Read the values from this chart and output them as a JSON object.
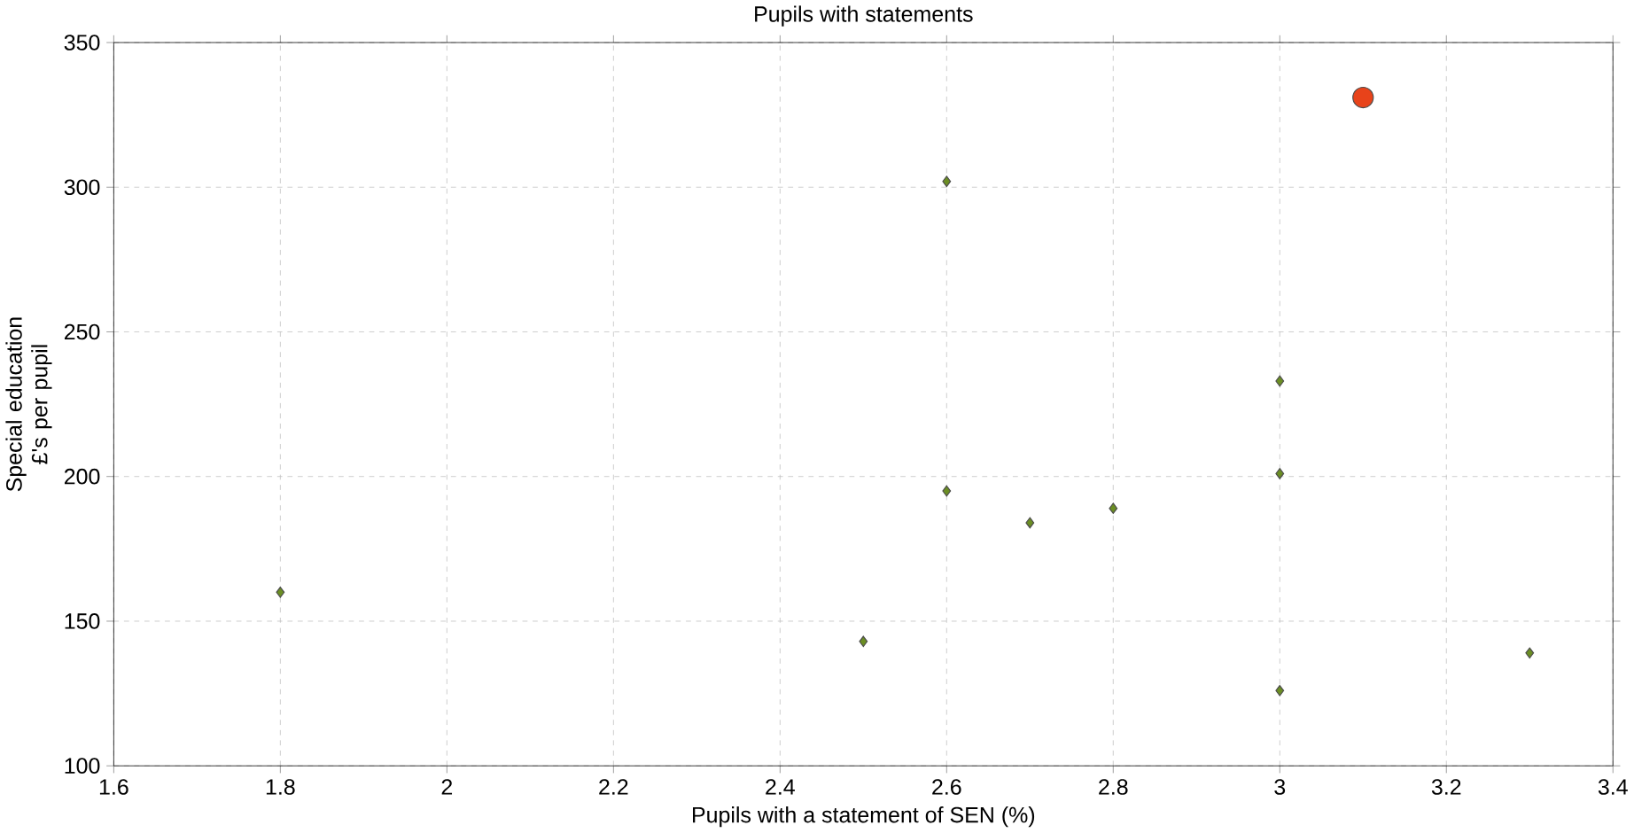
{
  "chart_data": {
    "type": "scatter",
    "title": "Pupils with statements",
    "xlabel": "Pupils with a statement of SEN (%)",
    "ylabel": "Special education £'s per pupil",
    "series": [
      {
        "color": "#6b8e23",
        "marker": "diamond",
        "x": [
          1.8,
          2.5,
          2.6,
          2.6,
          2.7,
          2.8,
          3.0,
          3.0,
          3.0,
          3.3
        ],
        "values": [
          160,
          143,
          302,
          195,
          184,
          189,
          233,
          201,
          126,
          139
        ]
      },
      {
        "color": "#e8431a",
        "marker": "circle",
        "x": [
          3.1
        ],
        "values": [
          331
        ]
      }
    ],
    "xlim": [
      1.6,
      3.4
    ],
    "xticks": [
      1.6,
      1.8,
      2,
      2.2,
      2.4,
      2.6,
      2.8,
      3,
      3.2,
      3.4
    ],
    "ylim": [
      100,
      350
    ],
    "yticks": [
      100,
      150,
      200,
      250,
      300,
      350
    ],
    "grid": true
  }
}
